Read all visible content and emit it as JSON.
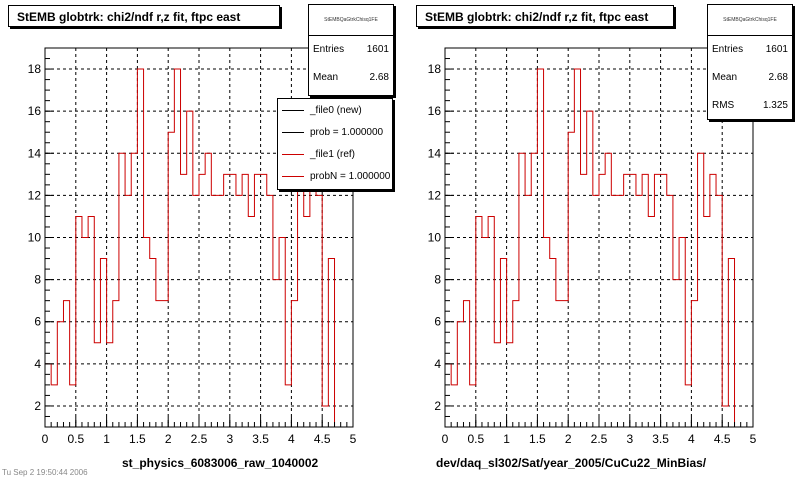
{
  "footer_text": "Tu Sep 2 19:50:44 2006",
  "panels": [
    {
      "title": "StEMB globtrk: chi2/ndf r,z fit, ftpc east",
      "xlabel": "st_physics_6083006_raw_1040002",
      "stats": {
        "name": "StEMBQaGtrkChisq1FE",
        "rows": [
          {
            "label": "Entries",
            "value": "1601"
          },
          {
            "label": "Mean",
            "value": "2.68"
          }
        ]
      },
      "legend": [
        {
          "label": "_file0 (new)",
          "color": "#000000"
        },
        {
          "label": "prob = 1.000000",
          "color": "#000000"
        },
        {
          "label": "_file1 (ref)",
          "color": "#cc0000"
        },
        {
          "label": "probN = 1.000000",
          "color": "#cc0000"
        }
      ]
    },
    {
      "title": "StEMB globtrk: chi2/ndf r,z fit, ftpc east",
      "xlabel": "dev/daq_sl302/Sat/year_2005/CuCu22_MinBias/",
      "stats": {
        "name": "StEMBQaGtrkChisq1FE",
        "rows": [
          {
            "label": "Entries",
            "value": "1601"
          },
          {
            "label": "Mean",
            "value": "2.68"
          },
          {
            "label": "RMS",
            "value": "1.325"
          }
        ]
      },
      "legend": []
    }
  ],
  "chart_data": [
    {
      "type": "histogram",
      "title": "StEMB globtrk: chi2/ndf r,z fit, ftpc east",
      "xlabel": "st_physics_6083006_raw_1040002",
      "xlim": [
        0,
        5
      ],
      "ylim": [
        1,
        19
      ],
      "xticks": [
        0,
        0.5,
        1,
        1.5,
        2,
        2.5,
        3,
        3.5,
        4,
        4.5,
        5
      ],
      "yticks": [
        2,
        4,
        6,
        8,
        10,
        12,
        14,
        16,
        18
      ],
      "grid": true,
      "bin_width": 0.1,
      "color": "#cc0000",
      "values": [
        4,
        3,
        6,
        7,
        3,
        11,
        10,
        11,
        5,
        9,
        5,
        7,
        14,
        12,
        14,
        18,
        10,
        9,
        7,
        7,
        15,
        18,
        13,
        16,
        12,
        13,
        14,
        12,
        12,
        13,
        13,
        12,
        13,
        11,
        13,
        13,
        12,
        8,
        10,
        3,
        7,
        14,
        11,
        13,
        12,
        2,
        9
      ]
    },
    {
      "type": "histogram",
      "title": "StEMB globtrk: chi2/ndf r,z fit, ftpc east",
      "xlabel": "dev/daq_sl302/Sat/year_2005/CuCu22_MinBias/",
      "xlim": [
        0,
        5
      ],
      "ylim": [
        1,
        19
      ],
      "xticks": [
        0,
        0.5,
        1,
        1.5,
        2,
        2.5,
        3,
        3.5,
        4,
        4.5,
        5
      ],
      "yticks": [
        2,
        4,
        6,
        8,
        10,
        12,
        14,
        16,
        18
      ],
      "grid": true,
      "bin_width": 0.1,
      "color": "#cc0000",
      "values": [
        4,
        3,
        6,
        7,
        3,
        11,
        10,
        11,
        5,
        9,
        5,
        7,
        14,
        12,
        14,
        18,
        10,
        9,
        7,
        7,
        15,
        18,
        13,
        16,
        12,
        13,
        14,
        12,
        12,
        13,
        13,
        12,
        13,
        11,
        13,
        13,
        12,
        8,
        10,
        3,
        7,
        14,
        11,
        13,
        12,
        2,
        9
      ]
    }
  ]
}
